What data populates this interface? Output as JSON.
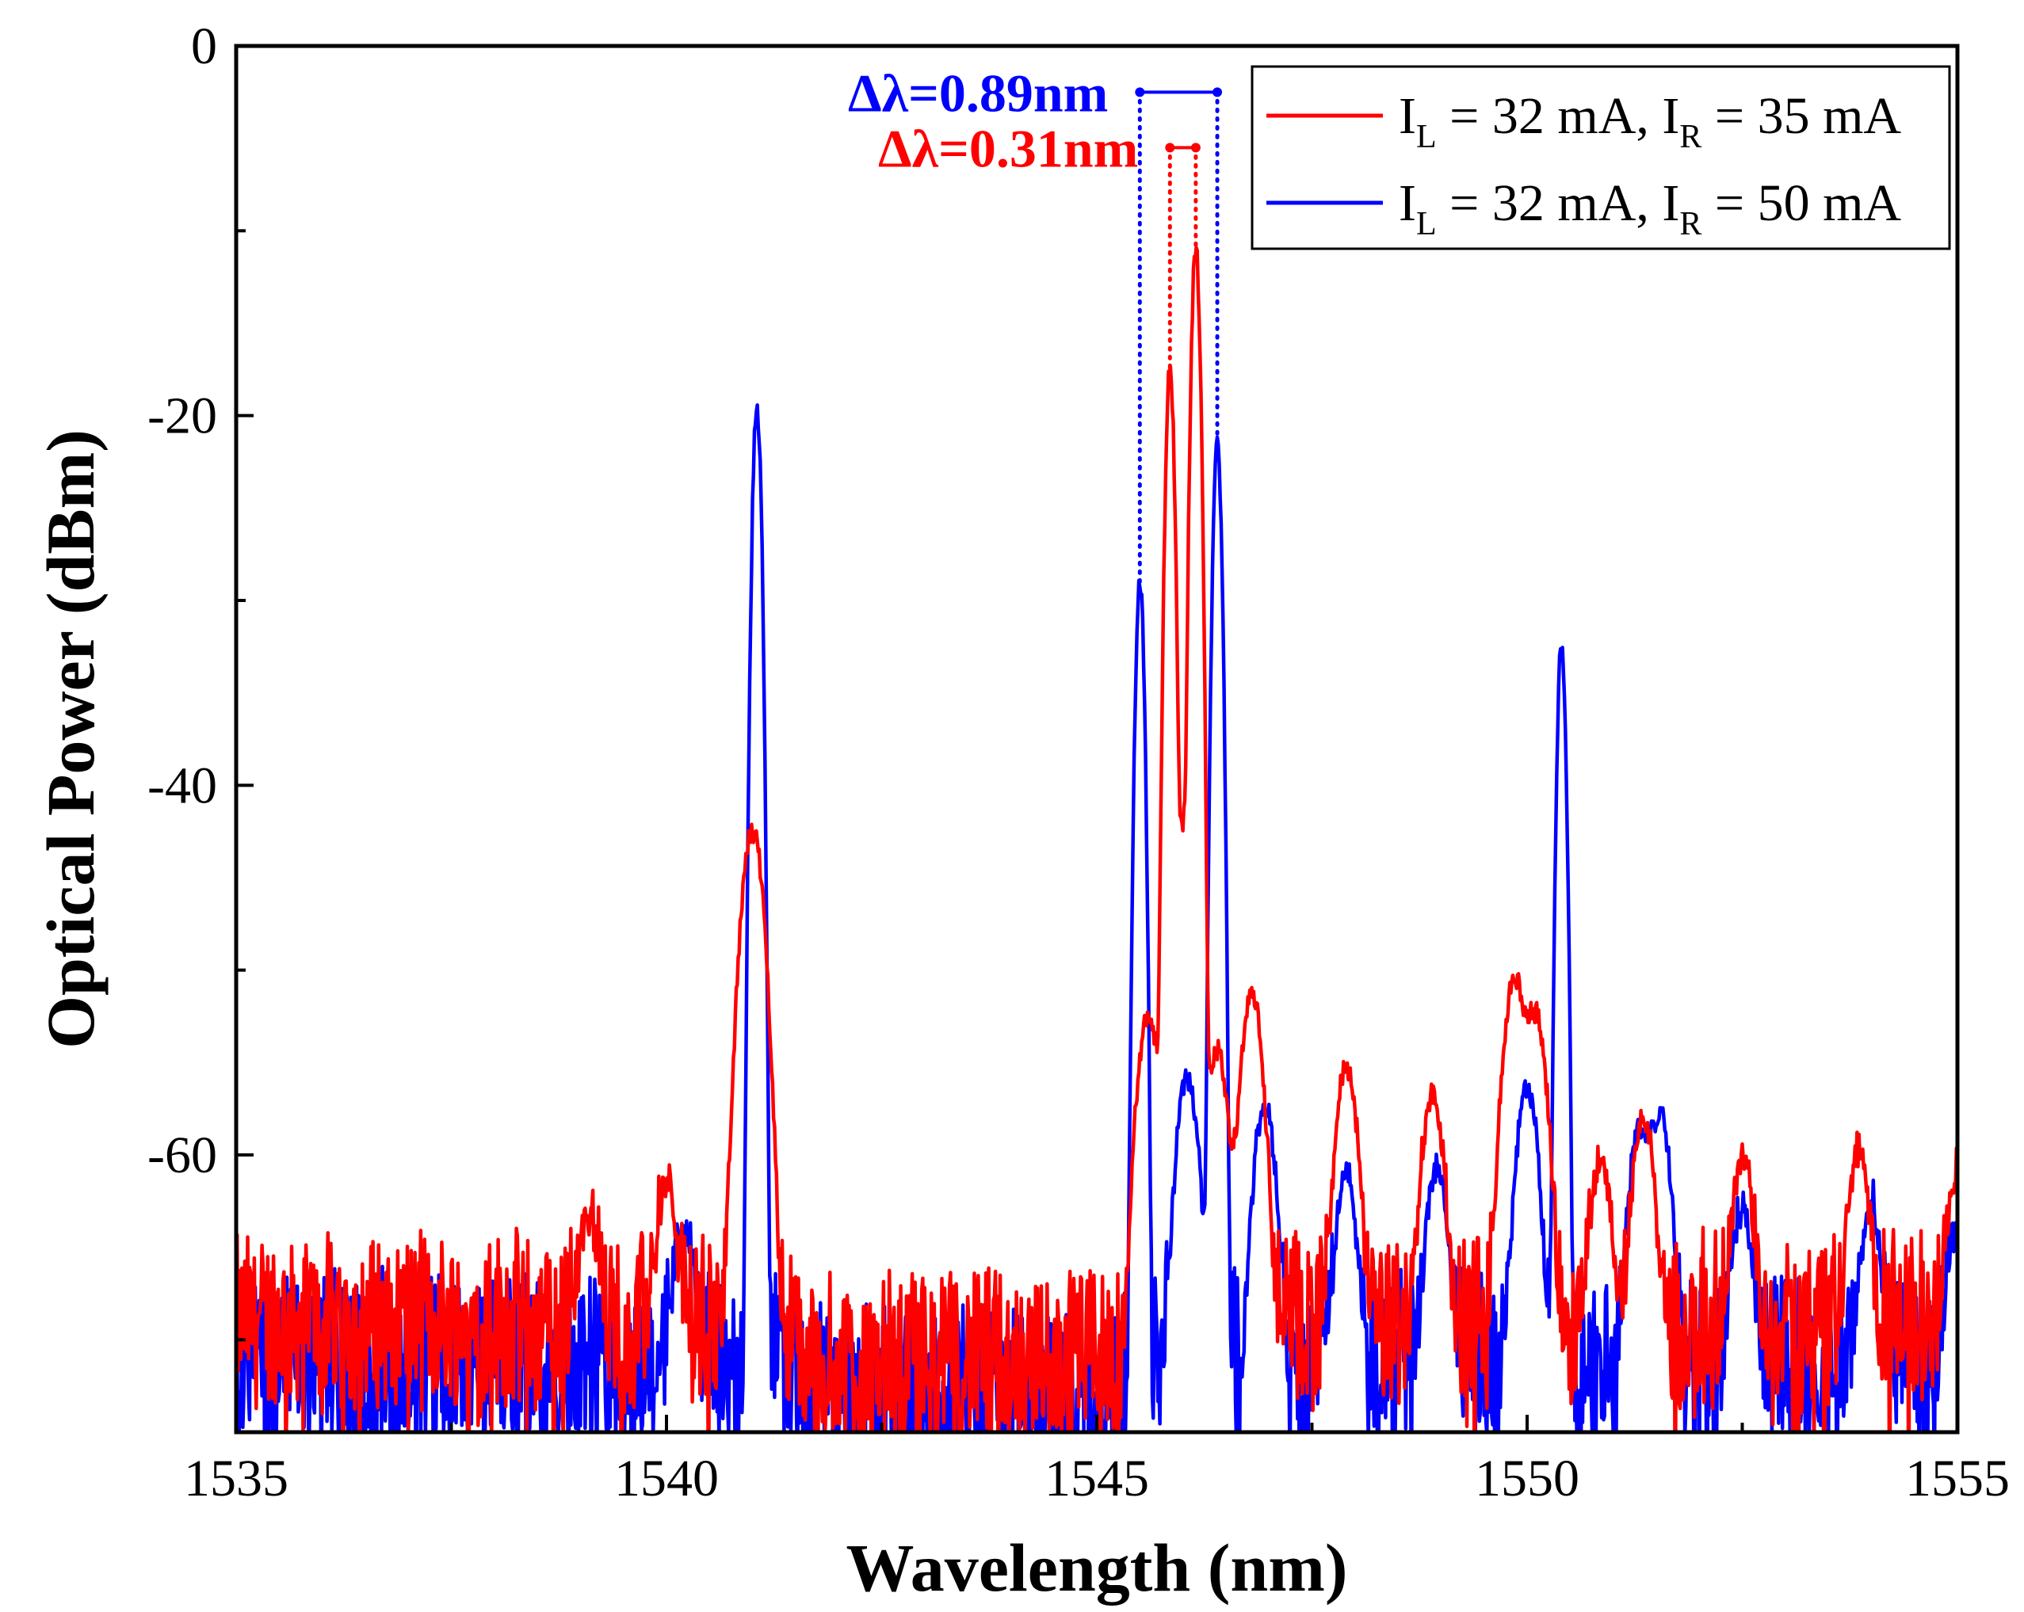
{
  "chart_data": {
    "type": "line",
    "xlabel": "Wavelength (nm)",
    "ylabel": "Optical Power (dBm)",
    "xlim": [
      1535,
      1555
    ],
    "ylim": [
      -75,
      0
    ],
    "x_ticks": [
      "1535",
      "1540",
      "1545",
      "1550",
      "1555"
    ],
    "y_ticks": [
      "0",
      "-20",
      "-40",
      "-60"
    ],
    "grid": false,
    "legend_position": "top-right",
    "series": [
      {
        "name": "I_L = 32 mA, I_R = 35 mA",
        "legend": {
          "a": "I",
          "a_sub": "L",
          "b": " = 32 mA, I",
          "b_sub": "R",
          "c": " = 35 mA"
        },
        "color": "#ff0000",
        "noise_floor": -69,
        "peaks": [
          {
            "x": 1539.1,
            "y": -64.5
          },
          {
            "x": 1540.0,
            "y": -62.5
          },
          {
            "x": 1541.0,
            "y": -42.5
          },
          {
            "x": 1545.6,
            "y": -52.5
          },
          {
            "x": 1545.85,
            "y": -17.5
          },
          {
            "x": 1546.0,
            "y": -42.0
          },
          {
            "x": 1546.15,
            "y": -11.0
          },
          {
            "x": 1546.4,
            "y": -54.5
          },
          {
            "x": 1546.8,
            "y": -51.5
          },
          {
            "x": 1547.9,
            "y": -55.5
          },
          {
            "x": 1548.9,
            "y": -57.0
          },
          {
            "x": 1549.85,
            "y": -50.5
          },
          {
            "x": 1550.1,
            "y": -52.5
          },
          {
            "x": 1550.85,
            "y": -61.0
          },
          {
            "x": 1551.35,
            "y": -58.5
          },
          {
            "x": 1552.5,
            "y": -61.0
          },
          {
            "x": 1553.85,
            "y": -60.5
          },
          {
            "x": 1555.0,
            "y": -61.5
          }
        ]
      },
      {
        "name": "I_L = 32 mA, I_R = 50 mA",
        "legend": {
          "a": "I",
          "a_sub": "L",
          "b": " = 32 mA, I",
          "b_sub": "R",
          "c": " = 50 mA"
        },
        "color": "#0000ff",
        "noise_floor": -71,
        "peaks": [
          {
            "x": 1540.2,
            "y": -64.5
          },
          {
            "x": 1541.05,
            "y": -19.5
          },
          {
            "x": 1545.5,
            "y": -29.0
          },
          {
            "x": 1546.05,
            "y": -56.0
          },
          {
            "x": 1546.4,
            "y": -21.5
          },
          {
            "x": 1546.95,
            "y": -57.5
          },
          {
            "x": 1547.9,
            "y": -61.5
          },
          {
            "x": 1548.95,
            "y": -61.0
          },
          {
            "x": 1550.0,
            "y": -56.5
          },
          {
            "x": 1550.4,
            "y": -32.5
          },
          {
            "x": 1551.3,
            "y": -59.0
          },
          {
            "x": 1551.55,
            "y": -58.0
          },
          {
            "x": 1552.5,
            "y": -63.5
          },
          {
            "x": 1554.0,
            "y": -63.5
          },
          {
            "x": 1555.0,
            "y": -64.5
          }
        ]
      }
    ],
    "annotations": [
      {
        "text": "Δλ=0.89nm",
        "color": "#0000ff",
        "x1": 1545.5,
        "x2": 1546.4,
        "y": -2.5
      },
      {
        "text": "Δλ=0.31nm",
        "color": "#ff0000",
        "x1": 1545.85,
        "x2": 1546.15,
        "y": -5.5
      }
    ]
  }
}
